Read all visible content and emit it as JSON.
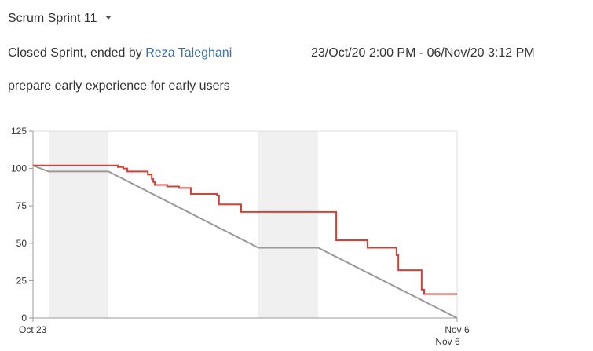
{
  "header": {
    "sprint_name": "Scrum Sprint 11",
    "status_prefix": "Closed Sprint, ended by",
    "ended_by": "Reza Taleghani",
    "date_range": "23/Oct/20 2:00 PM - 06/Nov/20 3:12 PM",
    "goal": "prepare early experience for early users"
  },
  "chart_data": {
    "type": "line",
    "xlim": [
      0,
      14
    ],
    "xticks": [
      {
        "value": 0,
        "label": "Oct 23"
      },
      {
        "value": 14,
        "label": "Nov 6"
      }
    ],
    "x_end_label": "Nov 6",
    "ylim": [
      0,
      125
    ],
    "yticks": [
      0,
      25,
      50,
      75,
      100,
      125
    ],
    "shaded_ranges": [
      [
        0.52,
        2.49
      ],
      [
        7.44,
        9.41
      ]
    ],
    "shade_color": "#f0f0f0",
    "series": [
      {
        "color": "#999999",
        "step": false,
        "x": [
          0,
          0.52,
          2.49,
          7.44,
          9.41,
          14
        ],
        "values": [
          102,
          98,
          98,
          47,
          47,
          0
        ]
      },
      {
        "color": "#d04437",
        "step": true,
        "x": [
          0,
          2.8,
          2.98,
          3.11,
          3.79,
          3.92,
          3.97,
          4.02,
          4.43,
          4.82,
          5.21,
          6.07,
          6.14,
          6.87,
          10.01,
          11.04,
          12.0,
          12.06,
          12.83,
          12.91,
          14
        ],
        "values": [
          102,
          101,
          100,
          98,
          96,
          93,
          91,
          89,
          88,
          87,
          83,
          82,
          76,
          71,
          52,
          47,
          42,
          32,
          19,
          16,
          16
        ]
      }
    ]
  }
}
